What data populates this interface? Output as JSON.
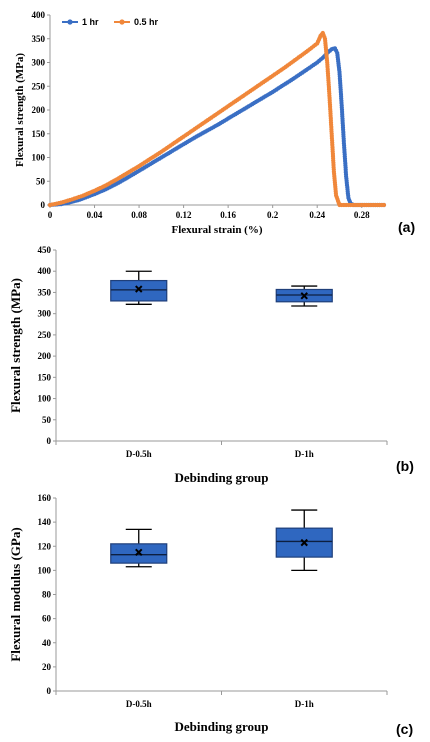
{
  "colors": {
    "series_1hr": "#3a6fc4",
    "series_05hr": "#f0873a",
    "box_fill": "#2f67c0",
    "box_stroke": "#1f3f7a"
  },
  "chart_data": [
    {
      "type": "line",
      "panel_label": "(a)",
      "xlabel": "Flexural strain (%)",
      "ylabel": "Flexural strength (MPa)",
      "xlim": [
        0,
        0.3
      ],
      "ylim": [
        0,
        400
      ],
      "xticks": [
        "0",
        "0.04",
        "0.08",
        "0.12",
        "0.16",
        "0.2",
        "0.24",
        "0.28"
      ],
      "xtick_values": [
        0,
        0.04,
        0.08,
        0.12,
        0.16,
        0.2,
        0.24,
        0.28
      ],
      "yticks": [
        "0",
        "50",
        "100",
        "150",
        "200",
        "250",
        "300",
        "350",
        "400"
      ],
      "ytick_values": [
        0,
        50,
        100,
        150,
        200,
        250,
        300,
        350,
        400
      ],
      "legend_position": "top-left",
      "grid": false,
      "series": [
        {
          "name": "1 hr",
          "color": "#3a6fc4",
          "x": [
            0,
            0.005,
            0.01,
            0.015,
            0.02,
            0.025,
            0.03,
            0.04,
            0.05,
            0.06,
            0.07,
            0.08,
            0.09,
            0.1,
            0.11,
            0.12,
            0.13,
            0.14,
            0.15,
            0.16,
            0.17,
            0.18,
            0.19,
            0.2,
            0.21,
            0.22,
            0.23,
            0.24,
            0.245,
            0.25,
            0.253,
            0.256,
            0.258,
            0.26,
            0.262,
            0.264,
            0.266,
            0.268,
            0.27,
            0.273,
            0.3
          ],
          "y": [
            0,
            1,
            2,
            4,
            7,
            10,
            14,
            23,
            33,
            45,
            58,
            72,
            86,
            100,
            114,
            128,
            142,
            155,
            168,
            182,
            196,
            210,
            224,
            238,
            253,
            268,
            284,
            300,
            310,
            322,
            328,
            330,
            320,
            280,
            210,
            130,
            60,
            15,
            3,
            0,
            0
          ]
        },
        {
          "name": "0.5 hr",
          "color": "#f0873a",
          "x": [
            0,
            0.01,
            0.02,
            0.03,
            0.04,
            0.05,
            0.06,
            0.07,
            0.08,
            0.09,
            0.1,
            0.11,
            0.12,
            0.13,
            0.14,
            0.15,
            0.16,
            0.17,
            0.18,
            0.19,
            0.2,
            0.21,
            0.22,
            0.23,
            0.24,
            0.243,
            0.245,
            0.247,
            0.249,
            0.251,
            0.253,
            0.255,
            0.257,
            0.26,
            0.3
          ],
          "y": [
            0,
            5,
            12,
            20,
            30,
            41,
            54,
            68,
            82,
            97,
            112,
            128,
            144,
            160,
            176,
            192,
            208,
            224,
            240,
            256,
            272,
            288,
            305,
            322,
            340,
            356,
            362,
            350,
            300,
            230,
            150,
            70,
            20,
            0,
            0
          ]
        }
      ]
    },
    {
      "type": "box",
      "panel_label": "(b)",
      "xlabel": "Debinding group",
      "ylabel": "Flexural strength (MPa)",
      "ylim": [
        0,
        450
      ],
      "yticks": [
        "0",
        "50",
        "100",
        "150",
        "200",
        "250",
        "300",
        "350",
        "400",
        "450"
      ],
      "ytick_values": [
        0,
        50,
        100,
        150,
        200,
        250,
        300,
        350,
        400,
        450
      ],
      "categories": [
        "D-0.5h",
        "D-1h"
      ],
      "boxes": [
        {
          "category": "D-0.5h",
          "min": 322,
          "q1": 330,
          "median": 356,
          "q3": 378,
          "max": 400,
          "mean": 358
        },
        {
          "category": "D-1h",
          "min": 318,
          "q1": 328,
          "median": 344,
          "q3": 357,
          "max": 365,
          "mean": 342
        }
      ]
    },
    {
      "type": "box",
      "panel_label": "(c)",
      "xlabel": "Debinding group",
      "ylabel": "Flexural modulus (GPa)",
      "ylim": [
        0,
        160
      ],
      "yticks": [
        "0",
        "20",
        "40",
        "60",
        "80",
        "100",
        "120",
        "140",
        "160"
      ],
      "ytick_values": [
        0,
        20,
        40,
        60,
        80,
        100,
        120,
        140,
        160
      ],
      "categories": [
        "D-0.5h",
        "D-1h"
      ],
      "boxes": [
        {
          "category": "D-0.5h",
          "min": 103,
          "q1": 106,
          "median": 113,
          "q3": 122,
          "max": 134,
          "mean": 115
        },
        {
          "category": "D-1h",
          "min": 100,
          "q1": 111,
          "median": 124,
          "q3": 135,
          "max": 150,
          "mean": 123
        }
      ]
    }
  ]
}
